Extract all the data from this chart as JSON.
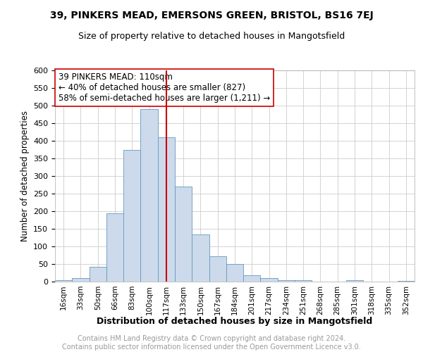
{
  "title1": "39, PINKERS MEAD, EMERSONS GREEN, BRISTOL, BS16 7EJ",
  "title2": "Size of property relative to detached houses in Mangotsfield",
  "xlabel": "Distribution of detached houses by size in Mangotsfield",
  "ylabel": "Number of detached properties",
  "footer1": "Contains HM Land Registry data © Crown copyright and database right 2024.",
  "footer2": "Contains public sector information licensed under the Open Government Licence v3.0.",
  "annotation_line1": "39 PINKERS MEAD: 110sqm",
  "annotation_line2": "← 40% of detached houses are smaller (827)",
  "annotation_line3": "58% of semi-detached houses are larger (1,211) →",
  "tick_labels": [
    "16sqm",
    "33sqm",
    "50sqm",
    "66sqm",
    "83sqm",
    "100sqm",
    "117sqm",
    "133sqm",
    "150sqm",
    "167sqm",
    "184sqm",
    "201sqm",
    "217sqm",
    "234sqm",
    "251sqm",
    "268sqm",
    "285sqm",
    "301sqm",
    "318sqm",
    "335sqm",
    "352sqm"
  ],
  "bar_heights": [
    5,
    10,
    42,
    195,
    375,
    490,
    410,
    270,
    135,
    72,
    50,
    18,
    10,
    5,
    5,
    0,
    0,
    5,
    0,
    0,
    2
  ],
  "bar_color": "#ccdaec",
  "bar_edge_color": "#6699bb",
  "vline_color": "#cc0000",
  "vline_tick_index": 6,
  "annotation_box_facecolor": "white",
  "annotation_box_edge": "#cc0000",
  "ylim": [
    0,
    600
  ],
  "yticks": [
    0,
    50,
    100,
    150,
    200,
    250,
    300,
    350,
    400,
    450,
    500,
    550,
    600
  ],
  "grid_color": "#cccccc",
  "title1_fontsize": 10,
  "title2_fontsize": 9,
  "xlabel_fontsize": 9,
  "ylabel_fontsize": 8.5,
  "annotation_fontsize": 8.5,
  "footer_fontsize": 7
}
